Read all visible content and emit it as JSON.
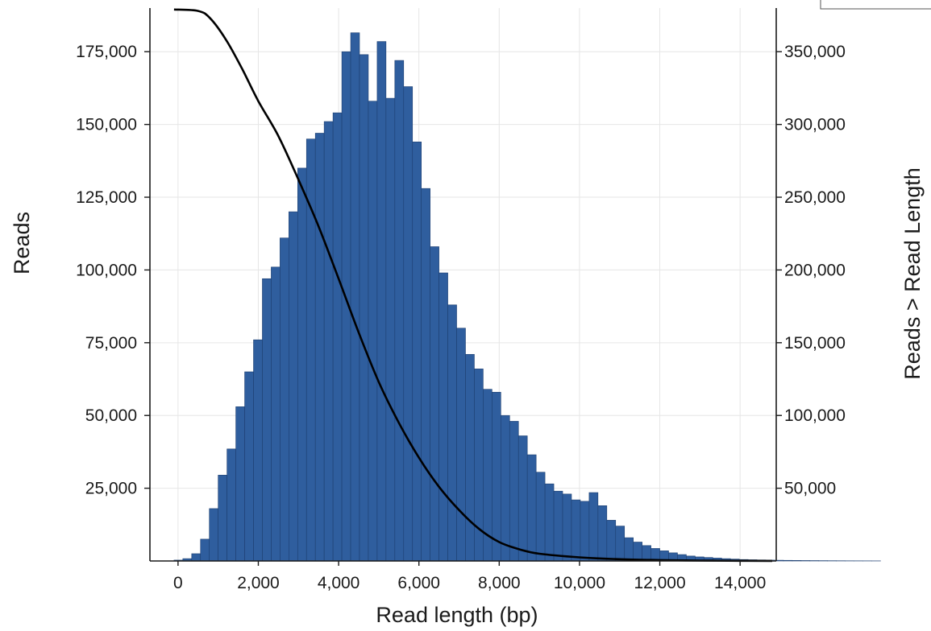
{
  "chart_data": {
    "type": "bar",
    "xlabel": "Read length (bp)",
    "ylabel": "Reads",
    "ylabel_right": "Reads > Read Length",
    "xlim": [
      -700,
      14900
    ],
    "ylim": [
      0,
      190000
    ],
    "ylim_right": [
      0,
      380000
    ],
    "grid": true,
    "x_ticks": [
      0,
      2000,
      4000,
      6000,
      8000,
      10000,
      12000,
      14000
    ],
    "x_tick_labels": [
      "0",
      "2,000",
      "4,000",
      "6,000",
      "8,000",
      "10,000",
      "12,000",
      "14,000"
    ],
    "y_ticks": [
      25000,
      50000,
      75000,
      100000,
      125000,
      150000,
      175000
    ],
    "y_tick_labels": [
      "25,000",
      "50,000",
      "75,000",
      "100,000",
      "125,000",
      "150,000",
      "175,000"
    ],
    "y_right_ticks": [
      50000,
      100000,
      150000,
      200000,
      250000,
      300000,
      350000
    ],
    "y_right_tick_labels": [
      "50,000",
      "100,000",
      "150,000",
      "200,000",
      "250,000",
      "300,000",
      "350,000"
    ],
    "bin_width": 220,
    "bin_start": -100,
    "series": [
      {
        "axis": "left",
        "values": [
          300,
          800,
          2500,
          7500,
          18000,
          29500,
          38500,
          53000,
          65000,
          76000,
          97000,
          101000,
          111000,
          120000,
          135000,
          145000,
          147000,
          151000,
          154000,
          175000,
          181500,
          174000,
          158000,
          178500,
          159000,
          172000,
          163000,
          144000,
          128000,
          108000,
          99000,
          88000,
          80000,
          71000,
          66000,
          59000,
          58000,
          50000,
          48000,
          43000,
          36500,
          30500,
          26500,
          24000,
          23000,
          21000,
          20500,
          23500,
          19000,
          14000,
          12000,
          8000,
          6500,
          5300,
          4300,
          3500,
          2800,
          2200,
          1700,
          1400,
          1200,
          1000,
          800,
          650,
          500,
          420,
          360,
          300,
          250,
          210,
          180,
          150,
          130,
          110,
          90,
          75,
          60,
          50,
          40,
          30
        ]
      },
      {
        "axis": "right",
        "type": "line",
        "x": [
          -100,
          500,
          800,
          1200,
          1600,
          2000,
          2500,
          3000,
          3500,
          4000,
          4500,
          5000,
          5500,
          6000,
          6500,
          7000,
          7500,
          8000,
          8500,
          9000,
          10000,
          11000,
          12000,
          13000,
          14000,
          14800
        ],
        "values": [
          379000,
          378000,
          373000,
          358000,
          338000,
          316000,
          292000,
          262000,
          230000,
          194000,
          157000,
          123000,
          95000,
          71000,
          51000,
          35000,
          22000,
          13000,
          8000,
          5000,
          2500,
          1200,
          600,
          300,
          100,
          50
        ]
      }
    ]
  }
}
